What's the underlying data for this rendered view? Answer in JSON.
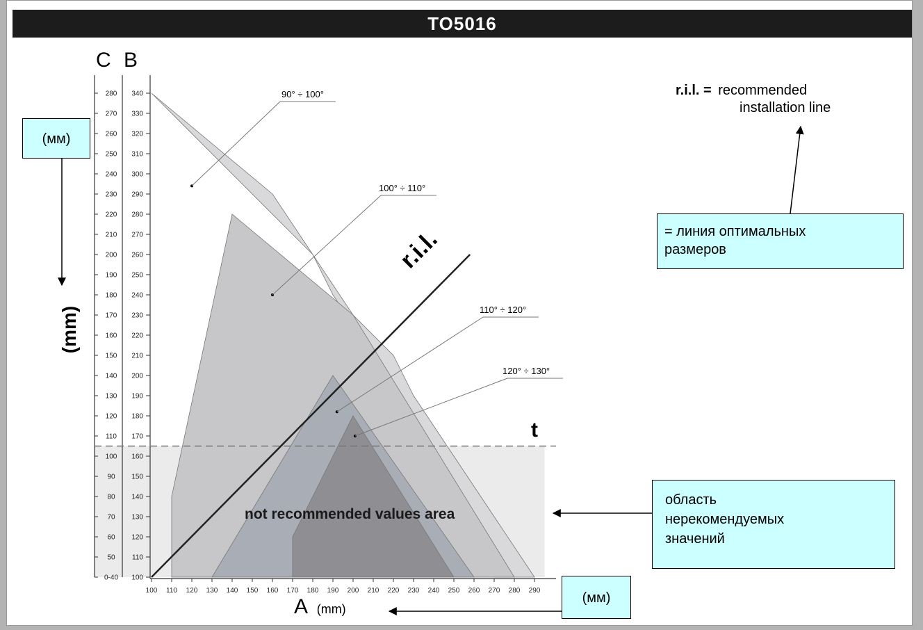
{
  "title": "TO5016",
  "chart_data": {
    "type": "area",
    "axis_c_label": "C",
    "axis_b_label": "B",
    "axis_a_label": "A",
    "axis_a_unit": "(mm)",
    "axis_vertical_unit": "(mm)",
    "x_ticks": [
      100,
      110,
      120,
      130,
      140,
      150,
      160,
      170,
      180,
      190,
      200,
      210,
      220,
      230,
      240,
      250,
      260,
      270,
      280,
      290
    ],
    "b_ticks": [
      100,
      110,
      120,
      130,
      140,
      150,
      160,
      170,
      180,
      190,
      200,
      210,
      220,
      230,
      240,
      250,
      260,
      270,
      280,
      290,
      300,
      310,
      320,
      330,
      340
    ],
    "c_ticks": [
      "0-40",
      "50",
      "60",
      "70",
      "80",
      "90",
      "100",
      "110",
      "120",
      "130",
      "140",
      "150",
      "160",
      "170",
      "180",
      "190",
      "200",
      "210",
      "220",
      "230",
      "240",
      "250",
      "260",
      "270",
      "280"
    ],
    "xlim": [
      100,
      295
    ],
    "ylim_b": [
      100,
      340
    ],
    "regions": [
      {
        "name": "90° ÷ 100°",
        "fill": "#d9d9db",
        "points": [
          [
            100,
            340
          ],
          [
            170,
            270
          ],
          [
            180,
            260
          ],
          [
            190,
            240
          ],
          [
            200,
            225
          ],
          [
            210,
            210
          ],
          [
            220,
            185
          ],
          [
            230,
            160
          ],
          [
            240,
            145
          ],
          [
            250,
            130
          ],
          [
            260,
            110
          ],
          [
            270,
            100
          ],
          [
            280,
            100
          ],
          [
            290,
            100
          ],
          [
            270,
            130
          ],
          [
            250,
            160
          ],
          [
            230,
            190
          ],
          [
            220,
            210
          ],
          [
            200,
            230
          ],
          [
            180,
            260
          ],
          [
            160,
            290
          ],
          [
            100,
            340
          ]
        ],
        "dot": [
          120,
          294
        ]
      },
      {
        "name": "100° ÷ 110°",
        "fill": "#c7c7ca",
        "points": [
          [
            110,
            100
          ],
          [
            110,
            140
          ],
          [
            140,
            280
          ],
          [
            200,
            230
          ],
          [
            280,
            100
          ]
        ],
        "dot": [
          160,
          240
        ]
      },
      {
        "name": "110° ÷ 120°",
        "fill": "#a9adb5",
        "points": [
          [
            130,
            100
          ],
          [
            190,
            200
          ],
          [
            260,
            100
          ]
        ],
        "dot": [
          192,
          182
        ]
      },
      {
        "name": "120° ÷ 130°",
        "fill": "#8e8e93",
        "points": [
          [
            170,
            100
          ],
          [
            170,
            120
          ],
          [
            200,
            180
          ],
          [
            250,
            100
          ]
        ],
        "dot": [
          201,
          170
        ]
      }
    ],
    "ril_line": [
      [
        100,
        100
      ],
      [
        258,
        260
      ]
    ],
    "ril_label": "r.i.l.",
    "t_level_b": 165,
    "t_label": "t",
    "not_recommended_label": "not recommended values area"
  },
  "legend_text": {
    "abbr": "r.i.l. =",
    "line1": "recommended",
    "line2": "installation line"
  },
  "notes": {
    "mm_left": "(мм)",
    "line_note_1": "= линия оптимальных",
    "line_note_2": "размеров",
    "area_note_1": "область",
    "area_note_2": "нерекомендуемых",
    "area_note_3": "значений",
    "mm_bottom": "(мм)"
  }
}
